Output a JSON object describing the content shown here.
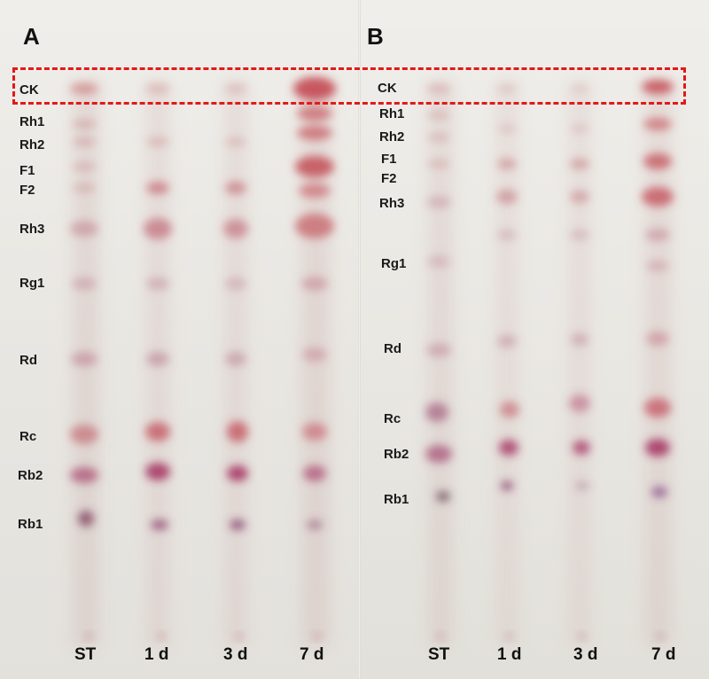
{
  "panels": [
    {
      "letter": "A",
      "compound_labels": [
        "CK",
        "Rh1",
        "Rh2",
        "F1",
        "F2",
        "Rh3",
        "Rg1",
        "Rd",
        "Rc",
        "Rb2",
        "Rb1"
      ],
      "lane_labels": [
        "ST",
        "1 d",
        "3 d",
        "7 d"
      ]
    },
    {
      "letter": "B",
      "compound_labels": [
        "CK",
        "Rh1",
        "Rh2",
        "F1",
        "F2",
        "Rh3",
        "Rg1",
        "Rd",
        "Rc",
        "Rb2",
        "Rb1"
      ],
      "lane_labels": [
        "ST",
        "1 d",
        "3 d",
        "7 d"
      ]
    }
  ],
  "highlight_color": "#e11a1a",
  "spot_colors": {
    "red": "#c9434a",
    "purple": "#8e2c6a"
  }
}
